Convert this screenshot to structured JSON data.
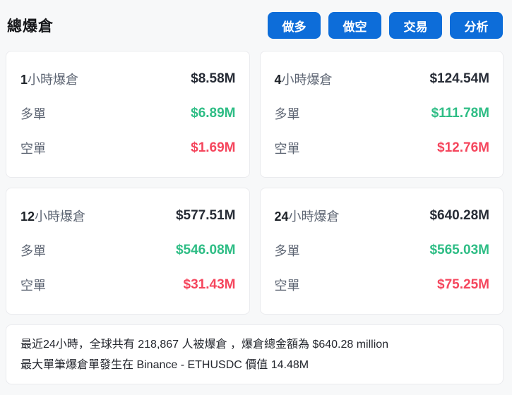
{
  "header": {
    "title": "總爆倉",
    "buttons": [
      {
        "label": "做多"
      },
      {
        "label": "做空"
      },
      {
        "label": "交易"
      },
      {
        "label": "分析"
      }
    ]
  },
  "labels": {
    "long": "多單",
    "short": "空單",
    "period_suffix": "小時爆倉"
  },
  "cards": [
    {
      "period_number": "1",
      "total": "$8.58M",
      "long_value": "$6.89M",
      "short_value": "$1.69M"
    },
    {
      "period_number": "4",
      "total": "$124.54M",
      "long_value": "$111.78M",
      "short_value": "$12.76M"
    },
    {
      "period_number": "12",
      "total": "$577.51M",
      "long_value": "$546.08M",
      "short_value": "$31.43M"
    },
    {
      "period_number": "24",
      "total": "$640.28M",
      "long_value": "$565.03M",
      "short_value": "$75.25M"
    }
  ],
  "summary": {
    "line1": "最近24小時，全球共有 218,867 人被爆倉 ，爆倉總金額為 $640.28 million",
    "line2": "最大單筆爆倉單發生在 Binance - ETHUSDC 價值 14.48M"
  },
  "colors": {
    "accent_blue": "#0d6dd9",
    "long_green": "#2ebd85",
    "short_red": "#f5465d"
  }
}
